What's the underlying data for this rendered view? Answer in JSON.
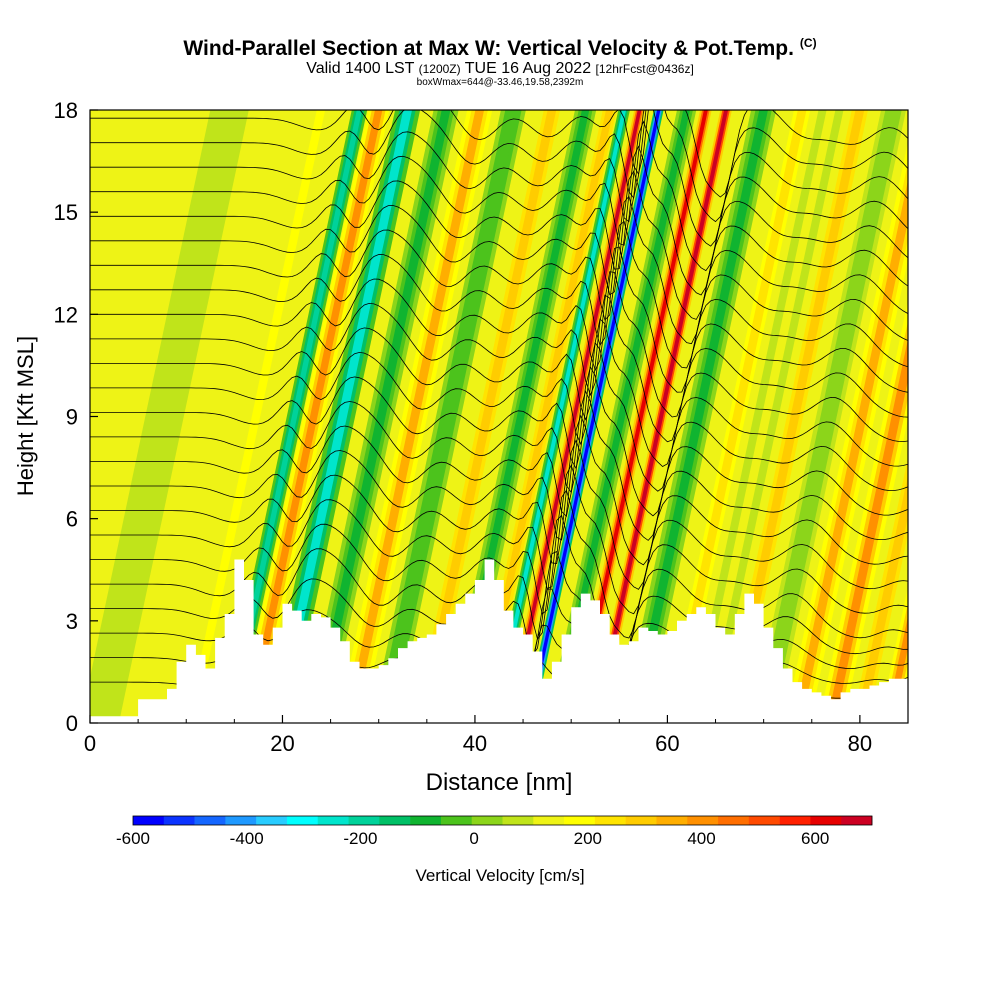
{
  "header": {
    "title": "Wind-Parallel Section at Max W: Vertical Velocity & Pot.Temp.",
    "copyright": "(C)",
    "valid_prefix": "Valid 1400 LST",
    "valid_utc": "(1200Z)",
    "valid_date": "TUE 16 Aug 2022",
    "forecast": "[12hrFcst@0436z]",
    "box_info": "boxWmax=644@-33.46,19.58,2392m"
  },
  "colors": {
    "scale": [
      "#0000ff",
      "#0a33ff",
      "#1466ff",
      "#1e99ff",
      "#28ccff",
      "#00ffff",
      "#00e5cc",
      "#00d29a",
      "#00c066",
      "#10b430",
      "#4cc31c",
      "#8cd51a",
      "#c0e41a",
      "#eef316",
      "#ffff00",
      "#ffe400",
      "#ffcc00",
      "#ffae00",
      "#ff9000",
      "#ff6e00",
      "#ff4a00",
      "#ff2000",
      "#e60000",
      "#cc0022"
    ],
    "terrain": "#ffffff",
    "contour": "#000000"
  },
  "chart_data": {
    "type": "heatmap",
    "xlabel": "Distance [nm]",
    "ylabel": "Height [Kft MSL]",
    "xlim": [
      0,
      85
    ],
    "ylim": [
      0,
      18
    ],
    "x_ticks": [
      0,
      20,
      40,
      60,
      80
    ],
    "y_ticks": [
      0,
      3,
      6,
      9,
      12,
      15,
      18
    ],
    "colorbar": {
      "label": "Vertical Velocity [cm/s]",
      "range": [
        -600,
        700
      ],
      "step": 50,
      "ticks": [
        -600,
        -400,
        -200,
        0,
        200,
        400,
        600
      ]
    },
    "vertical_velocity_bands": [
      {
        "x_base": 1.0,
        "width": 4.0,
        "w": 0
      },
      {
        "x_base": 10.5,
        "width": 2.5,
        "w": 100
      },
      {
        "x_base": 14.5,
        "width": 1.6,
        "w": -250
      },
      {
        "x_base": 16.5,
        "width": 2.2,
        "w": 300
      },
      {
        "x_base": 19.5,
        "width": 2.6,
        "w": -300
      },
      {
        "x_base": 23.5,
        "width": 2.6,
        "w": -150
      },
      {
        "x_base": 27.0,
        "width": 2.6,
        "w": 250
      },
      {
        "x_base": 30.5,
        "width": 2.6,
        "w": -100
      },
      {
        "x_base": 34.5,
        "width": 2.6,
        "w": 200
      },
      {
        "x_base": 38.0,
        "width": 2.2,
        "w": -150
      },
      {
        "x_base": 40.5,
        "width": 2.2,
        "w": 200
      },
      {
        "x_base": 42.0,
        "width": 1.2,
        "w": -300
      },
      {
        "x_base": 43.6,
        "width": 1.1,
        "w": 550
      },
      {
        "x_base": 45.6,
        "width": 1.0,
        "w": -600
      },
      {
        "x_base": 48.5,
        "width": 2.0,
        "w": -150
      },
      {
        "x_base": 50.5,
        "width": 1.2,
        "w": 500
      },
      {
        "x_base": 52.6,
        "width": 1.2,
        "w": 620
      },
      {
        "x_base": 56.5,
        "width": 2.6,
        "w": -150
      },
      {
        "x_base": 60.5,
        "width": 2.6,
        "w": 150
      },
      {
        "x_base": 63.5,
        "width": 2.6,
        "w": 50
      },
      {
        "x_base": 66.5,
        "width": 2.6,
        "w": 200
      },
      {
        "x_base": 70.0,
        "width": 2.6,
        "w": -50
      },
      {
        "x_base": 73.5,
        "width": 2.6,
        "w": 250
      },
      {
        "x_base": 77.0,
        "width": 2.6,
        "w": 300
      },
      {
        "x_base": 80.0,
        "width": 2.6,
        "w": 200
      },
      {
        "x_base": 83.0,
        "width": 2.0,
        "w": 300
      }
    ],
    "band_tilt_nm_per_kft": 0.75,
    "terrain_profile": [
      [
        0,
        0.2
      ],
      [
        4,
        0.2
      ],
      [
        5,
        0.7
      ],
      [
        7,
        0.7
      ],
      [
        8,
        1.0
      ],
      [
        9,
        1.8
      ],
      [
        10,
        2.3
      ],
      [
        11,
        2.0
      ],
      [
        12,
        1.6
      ],
      [
        13,
        2.5
      ],
      [
        14,
        3.2
      ],
      [
        15,
        4.8
      ],
      [
        16,
        4.2
      ],
      [
        17,
        2.6
      ],
      [
        18,
        2.3
      ],
      [
        19,
        2.8
      ],
      [
        20,
        3.5
      ],
      [
        21,
        3.3
      ],
      [
        22,
        3.0
      ],
      [
        23,
        3.2
      ],
      [
        24,
        3.1
      ],
      [
        25,
        2.8
      ],
      [
        26,
        2.4
      ],
      [
        27,
        1.8
      ],
      [
        28,
        1.6
      ],
      [
        29,
        1.6
      ],
      [
        30,
        1.7
      ],
      [
        31,
        1.9
      ],
      [
        32,
        2.2
      ],
      [
        33,
        2.4
      ],
      [
        34,
        2.5
      ],
      [
        35,
        2.6
      ],
      [
        36,
        2.9
      ],
      [
        37,
        3.2
      ],
      [
        38,
        3.5
      ],
      [
        39,
        3.8
      ],
      [
        40,
        4.2
      ],
      [
        41,
        4.8
      ],
      [
        42,
        4.2
      ],
      [
        43,
        3.3
      ],
      [
        44,
        2.8
      ],
      [
        45,
        2.6
      ],
      [
        46,
        2.1
      ],
      [
        47,
        1.3
      ],
      [
        48,
        1.8
      ],
      [
        49,
        2.6
      ],
      [
        50,
        3.4
      ],
      [
        51,
        3.8
      ],
      [
        52,
        3.6
      ],
      [
        53,
        3.2
      ],
      [
        54,
        2.6
      ],
      [
        55,
        2.3
      ],
      [
        56,
        2.4
      ],
      [
        57,
        2.8
      ],
      [
        58,
        2.7
      ],
      [
        59,
        2.6
      ],
      [
        60,
        2.7
      ],
      [
        61,
        3.0
      ],
      [
        62,
        3.2
      ],
      [
        63,
        3.4
      ],
      [
        64,
        3.2
      ],
      [
        65,
        2.8
      ],
      [
        66,
        2.6
      ],
      [
        67,
        3.2
      ],
      [
        68,
        3.8
      ],
      [
        69,
        3.5
      ],
      [
        70,
        2.8
      ],
      [
        71,
        2.2
      ],
      [
        72,
        1.6
      ],
      [
        73,
        1.2
      ],
      [
        74,
        1.0
      ],
      [
        75,
        0.9
      ],
      [
        76,
        0.8
      ],
      [
        77,
        0.7
      ],
      [
        78,
        0.9
      ],
      [
        79,
        1.0
      ],
      [
        80,
        1.0
      ],
      [
        81,
        1.1
      ],
      [
        82,
        1.2
      ],
      [
        83,
        1.3
      ],
      [
        85,
        1.3
      ]
    ],
    "potential_temperature_contours": {
      "description": "Potential temperature isentropes (K); values as printed labels are unreadable at this resolution",
      "count": 24
    }
  }
}
